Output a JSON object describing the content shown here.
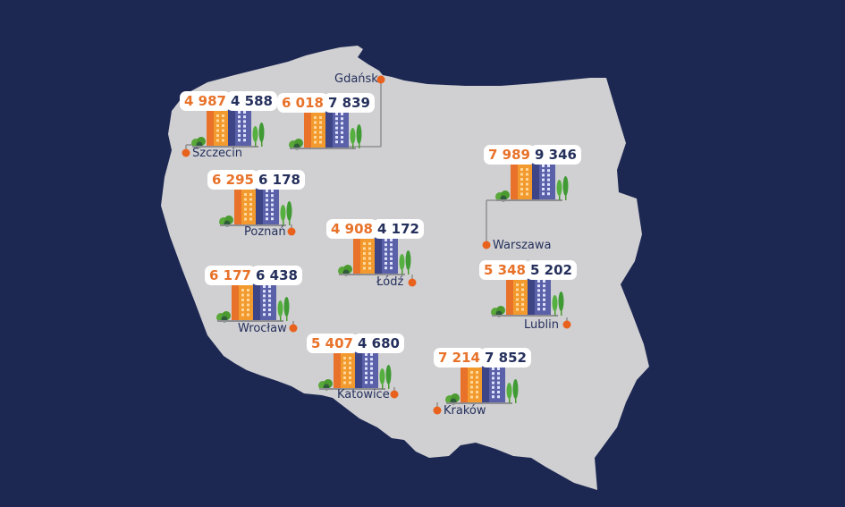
{
  "colors": {
    "background": "#1c2752",
    "land": "#d0d0d2",
    "orange": "#e8722a",
    "navy": "#25305c",
    "marker": "#e8621e"
  },
  "cities": [
    {
      "id": "szczecin",
      "name": "Szczecin",
      "orange_value": "4 987",
      "navy_value": "4 588"
    },
    {
      "id": "gdansk",
      "name": "Gdańsk",
      "orange_value": "6 018",
      "navy_value": "7 839"
    },
    {
      "id": "warszawa",
      "name": "Warszawa",
      "orange_value": "7 989",
      "navy_value": "9 346"
    },
    {
      "id": "poznan",
      "name": "Poznań",
      "orange_value": "6 295",
      "navy_value": "6 178"
    },
    {
      "id": "lodz",
      "name": "Łódź",
      "orange_value": "4 908",
      "navy_value": "4 172"
    },
    {
      "id": "lublin",
      "name": "Lublin",
      "orange_value": "5 348",
      "navy_value": "5 202"
    },
    {
      "id": "wroclaw",
      "name": "Wrocław",
      "orange_value": "6 177",
      "navy_value": "6 438"
    },
    {
      "id": "katowice",
      "name": "Katowice",
      "orange_value": "5 407",
      "navy_value": "4 680"
    },
    {
      "id": "krakow",
      "name": "Kraków",
      "orange_value": "7 214",
      "navy_value": "7 852"
    }
  ]
}
